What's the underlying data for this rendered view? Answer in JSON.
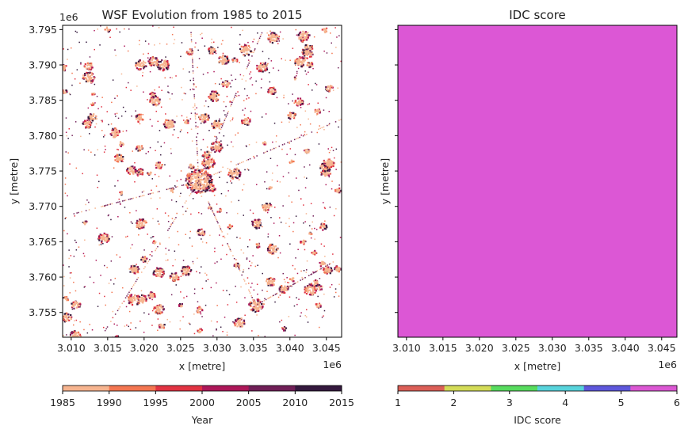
{
  "chart_data": [
    {
      "type": "heatmap",
      "title": "WSF Evolution from 1985 to 2015",
      "xlabel": "x [metre]",
      "ylabel": "y [metre]",
      "x_offset_label": "1e6",
      "y_offset_label": "1e6",
      "xlim": [
        3.00882,
        3.04709
      ],
      "ylim": [
        3.7515,
        3.7956
      ],
      "xticks": [
        3.01,
        3.015,
        3.02,
        3.025,
        3.03,
        3.035,
        3.04,
        3.045
      ],
      "xtick_labels": [
        "3.010",
        "3.015",
        "3.020",
        "3.025",
        "3.030",
        "3.035",
        "3.040",
        "3.045"
      ],
      "yticks": [
        3.755,
        3.76,
        3.765,
        3.77,
        3.775,
        3.78,
        3.785,
        3.79,
        3.795
      ],
      "ytick_labels": [
        "3.755",
        "3.760",
        "3.765",
        "3.770",
        "3.775",
        "3.780",
        "3.785",
        "3.790",
        "3.795"
      ],
      "colorbar": {
        "label": "Year",
        "range": [
          1985,
          2015
        ],
        "ticks": [
          "1985",
          "1990",
          "1995",
          "2000",
          "2005",
          "2010",
          "2015"
        ],
        "colors": [
          "#f6b48f",
          "#f37651",
          "#e13342",
          "#ad1759",
          "#701f57",
          "#35193e"
        ],
        "orientation": "horizontal"
      },
      "background": "#ffffff"
    },
    {
      "type": "heatmap",
      "title": "IDC score",
      "xlabel": "x [metre]",
      "ylabel": "y [metre]",
      "x_offset_label": "1e6",
      "xlim": [
        3.00882,
        3.04709
      ],
      "ylim": [
        3.7515,
        3.7956
      ],
      "xticks": [
        3.01,
        3.015,
        3.02,
        3.025,
        3.03,
        3.035,
        3.04,
        3.045
      ],
      "xtick_labels": [
        "3.010",
        "3.015",
        "3.020",
        "3.025",
        "3.030",
        "3.035",
        "3.040",
        "3.045"
      ],
      "yticks": [
        3.755,
        3.76,
        3.765,
        3.77,
        3.775,
        3.78,
        3.785,
        3.79,
        3.795
      ],
      "uniform_value": 6,
      "fill_color": "#dc57d5",
      "colorbar": {
        "label": "IDC score",
        "range": [
          1,
          6
        ],
        "ticks": [
          "1",
          "2",
          "3",
          "4",
          "5",
          "6"
        ],
        "colors": [
          "#db5f57",
          "#d3db57",
          "#57db5e",
          "#57d3db",
          "#5e57db",
          "#db57d3"
        ],
        "orientation": "horizontal"
      }
    }
  ]
}
